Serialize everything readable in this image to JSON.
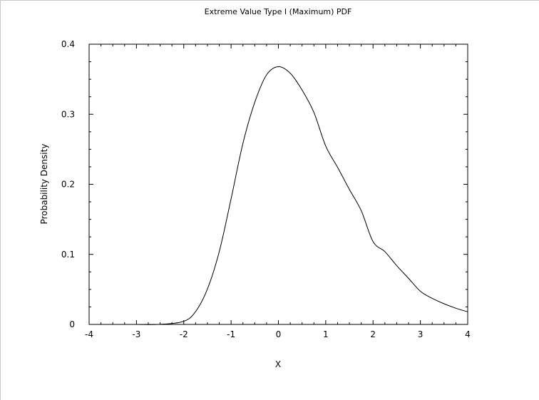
{
  "chart_data": {
    "type": "line",
    "title": "Extreme Value Type I (Maximum) PDF",
    "xlabel": "X",
    "ylabel": "Probability Density",
    "xlim": [
      -4,
      4
    ],
    "ylim": [
      0,
      0.4
    ],
    "x_ticks": [
      -4,
      -3,
      -2,
      -1,
      0,
      1,
      2,
      3,
      4
    ],
    "x_tick_labels": [
      "-4",
      "-3",
      "-2",
      "-1",
      "0",
      "1",
      "2",
      "3",
      "4"
    ],
    "y_ticks": [
      0,
      0.1,
      0.2,
      0.3,
      0.4
    ],
    "y_tick_labels": [
      "0",
      "0.1",
      "0.2",
      "0.3",
      "0.4"
    ],
    "grid": false,
    "legend": "none",
    "series": [
      {
        "x": [
          -4,
          -3.5,
          -3,
          -2.5,
          -2,
          -1.75,
          -1.5,
          -1.25,
          -1,
          -0.75,
          -0.5,
          -0.25,
          0,
          0.25,
          0.5,
          0.75,
          1,
          1.25,
          1.5,
          1.75,
          2,
          2.25,
          2.5,
          2.75,
          3,
          3.25,
          3.5,
          3.75,
          4
        ],
        "y": [
          0,
          0,
          0,
          0.0001,
          0.0045,
          0.0184,
          0.0506,
          0.1039,
          0.1794,
          0.2584,
          0.317,
          0.3562,
          0.3679,
          0.3585,
          0.3346,
          0.3026,
          0.2546,
          0.2243,
          0.1927,
          0.1624,
          0.1182,
          0.1039,
          0.0839,
          0.0658,
          0.0473,
          0.0372,
          0.0295,
          0.0231,
          0.018
        ]
      }
    ],
    "line_color": "#000000"
  }
}
